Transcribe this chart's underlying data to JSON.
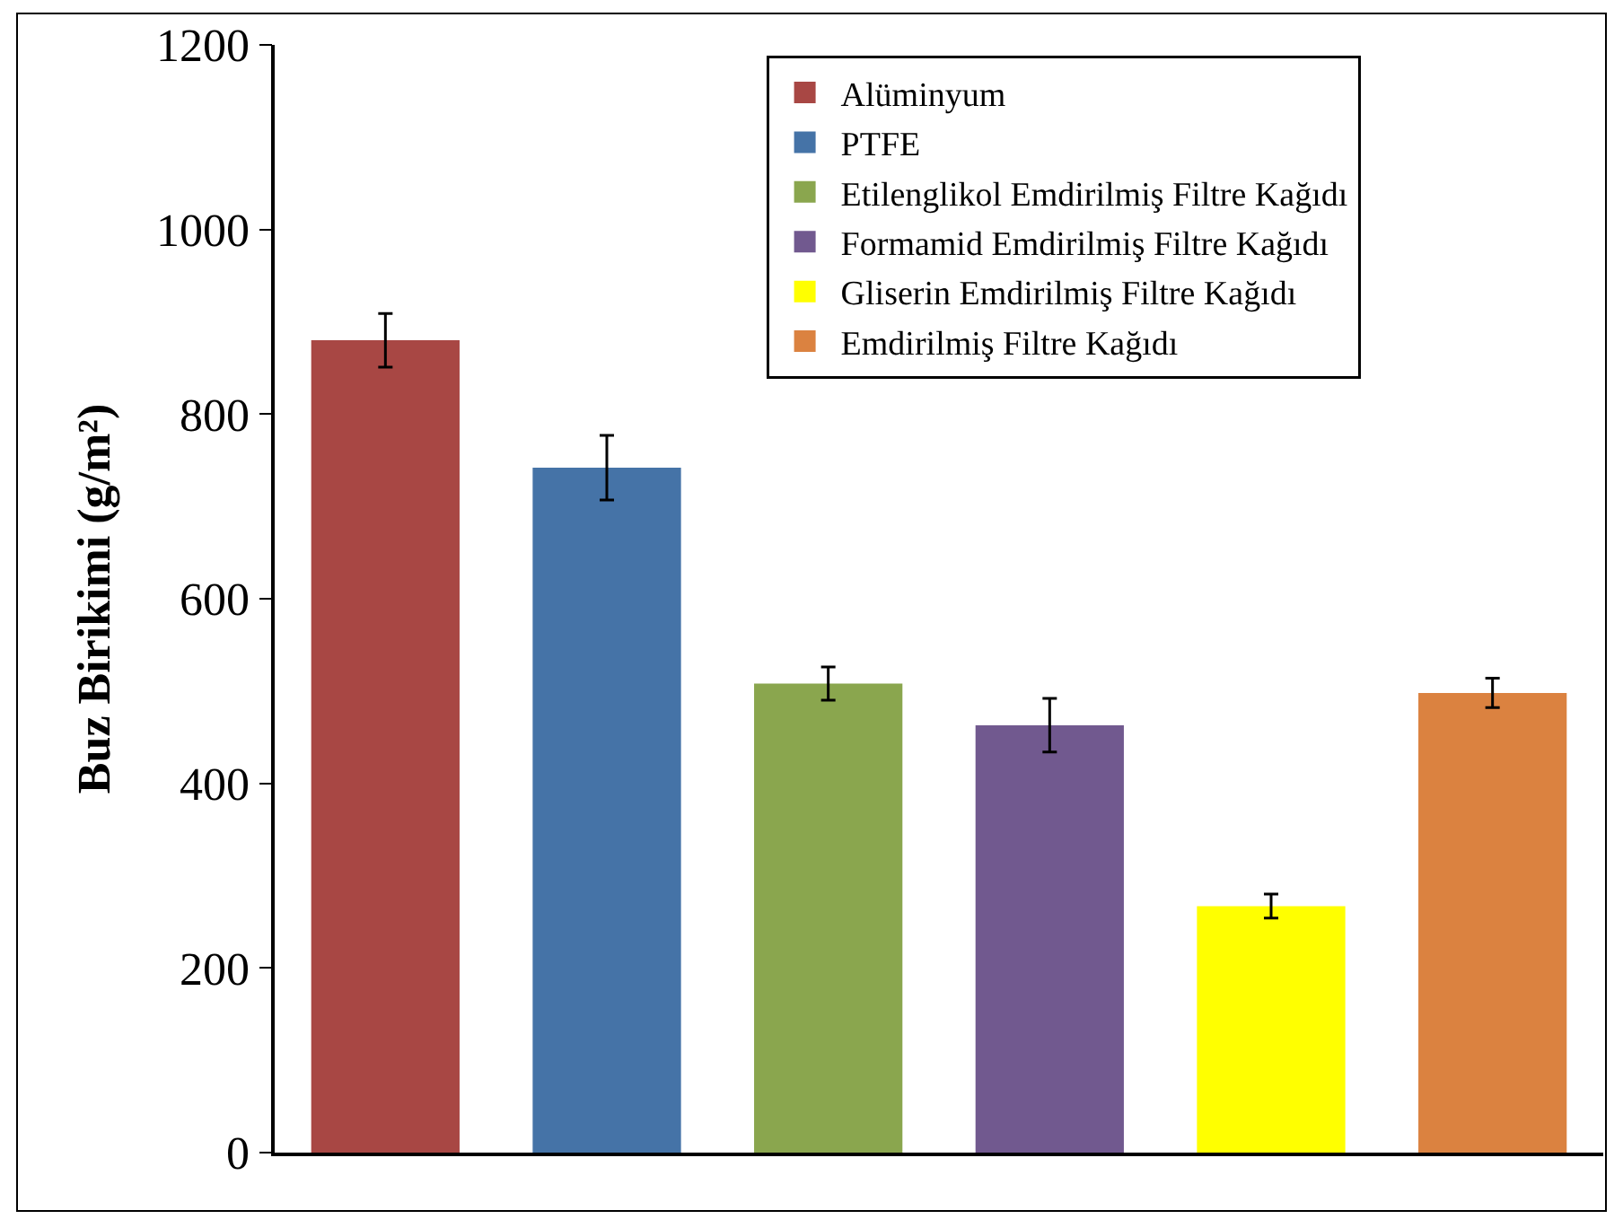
{
  "chart_data": {
    "type": "bar",
    "ylabel": "Buz Birikimi (g/m²)",
    "categories": [
      null,
      null,
      null,
      null,
      null,
      null
    ],
    "series": [
      {
        "name": "Alüminyum",
        "color": "#a84744",
        "values": [
          880,
          null,
          null,
          null,
          null,
          null
        ],
        "errors": [
          29,
          null,
          null,
          null,
          null,
          null
        ]
      },
      {
        "name": "PTFE",
        "color": "#4573a7",
        "values": [
          null,
          742,
          null,
          null,
          null,
          null
        ],
        "errors": [
          null,
          35,
          null,
          null,
          null,
          null
        ]
      },
      {
        "name": "Etilenglikol Emdirilmiş Filtre Kağıdı",
        "color": "#8aa64e",
        "values": [
          null,
          null,
          508,
          null,
          null,
          null
        ],
        "errors": [
          null,
          null,
          18,
          null,
          null,
          null
        ]
      },
      {
        "name": "Formamid Emdirilmiş Filtre Kağıdı",
        "color": "#71598f",
        "values": [
          null,
          null,
          null,
          463,
          null,
          null
        ],
        "errors": [
          null,
          null,
          null,
          29,
          null,
          null
        ]
      },
      {
        "name": "Gliserin Emdirilmiş Filtre Kağıdı",
        "color": "#ffff00",
        "values": [
          null,
          null,
          null,
          null,
          267,
          null
        ],
        "errors": [
          null,
          null,
          null,
          null,
          13,
          null
        ]
      },
      {
        "name": "Emdirilmiş Filtre Kağıdı",
        "color": "#db8240",
        "values": [
          null,
          null,
          null,
          null,
          null,
          498
        ],
        "errors": [
          null,
          null,
          null,
          null,
          null,
          16
        ]
      }
    ],
    "ylim": [
      0,
      1200
    ],
    "yticks": [
      0,
      200,
      400,
      600,
      800,
      1000,
      1200
    ],
    "grid": false,
    "legend": "top right",
    "tick_labels": "y"
  }
}
